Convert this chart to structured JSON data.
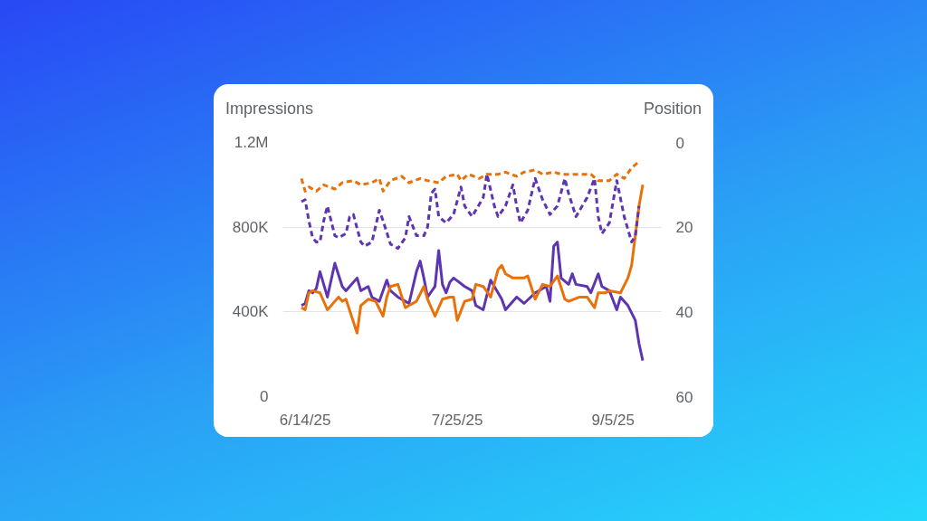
{
  "chart_data": {
    "type": "line",
    "ylabel": "Impressions",
    "y2label": "Position",
    "xlim": [
      "2025-06-08",
      "2025-09-18"
    ],
    "xticks": [
      {
        "value": "2025-06-14",
        "label": "6/14/25"
      },
      {
        "value": "2025-07-25",
        "label": "7/25/25"
      },
      {
        "value": "2025-09-05",
        "label": "9/5/25"
      }
    ],
    "ylim": [
      0,
      1200000
    ],
    "yticks": [
      {
        "value": 0,
        "label": "0"
      },
      {
        "value": 400000,
        "label": "400K"
      },
      {
        "value": 800000,
        "label": "800K"
      },
      {
        "value": 1200000,
        "label": "1.2M"
      }
    ],
    "y2lim": [
      60,
      0
    ],
    "y2ticks": [
      0,
      20,
      40,
      60
    ],
    "grid": "y",
    "legend": false,
    "series": [
      {
        "color": "#5e35b1",
        "line_style": "solid",
        "x": [
          "2025-06-13",
          "2025-06-14",
          "2025-06-15",
          "2025-06-16",
          "2025-06-17",
          "2025-06-18",
          "2025-06-20",
          "2025-06-22",
          "2025-06-24",
          "2025-06-25",
          "2025-06-26",
          "2025-06-28",
          "2025-06-29",
          "2025-07-01",
          "2025-07-02",
          "2025-07-04",
          "2025-07-06",
          "2025-07-07",
          "2025-07-09",
          "2025-07-11",
          "2025-07-12",
          "2025-07-14",
          "2025-07-15",
          "2025-07-16",
          "2025-07-17",
          "2025-07-19",
          "2025-07-20",
          "2025-07-21",
          "2025-07-22",
          "2025-07-23",
          "2025-07-24",
          "2025-07-27",
          "2025-07-29",
          "2025-07-30",
          "2025-08-01",
          "2025-08-03",
          "2025-08-06",
          "2025-08-07",
          "2025-08-10",
          "2025-08-12",
          "2025-08-15",
          "2025-08-18",
          "2025-08-19",
          "2025-08-20",
          "2025-08-21",
          "2025-08-22",
          "2025-08-24",
          "2025-08-25",
          "2025-08-26",
          "2025-08-29",
          "2025-08-30",
          "2025-09-01",
          "2025-09-02",
          "2025-09-04",
          "2025-09-06",
          "2025-09-07",
          "2025-09-09",
          "2025-09-11",
          "2025-09-12",
          "2025-09-13"
        ],
        "values": [
          430000,
          440000,
          500000,
          490000,
          510000,
          590000,
          470000,
          630000,
          520000,
          500000,
          520000,
          560000,
          500000,
          520000,
          470000,
          450000,
          550000,
          500000,
          470000,
          450000,
          440000,
          590000,
          640000,
          560000,
          470000,
          520000,
          690000,
          530000,
          490000,
          540000,
          560000,
          520000,
          500000,
          430000,
          410000,
          550000,
          460000,
          410000,
          470000,
          440000,
          490000,
          520000,
          450000,
          710000,
          730000,
          560000,
          530000,
          580000,
          530000,
          520000,
          490000,
          580000,
          520000,
          500000,
          410000,
          470000,
          430000,
          360000,
          250000,
          170000
        ]
      },
      {
        "color": "#e8710a",
        "line_style": "solid",
        "axis": "y2",
        "x": [
          "2025-06-13",
          "2025-06-14",
          "2025-06-15",
          "2025-06-16",
          "2025-06-18",
          "2025-06-20",
          "2025-06-22",
          "2025-06-23",
          "2025-06-24",
          "2025-06-25",
          "2025-06-28",
          "2025-06-29",
          "2025-07-01",
          "2025-07-03",
          "2025-07-05",
          "2025-07-06",
          "2025-07-07",
          "2025-07-09",
          "2025-07-11",
          "2025-07-12",
          "2025-07-14",
          "2025-07-16",
          "2025-07-17",
          "2025-07-19",
          "2025-07-21",
          "2025-07-23",
          "2025-07-24",
          "2025-07-25",
          "2025-07-27",
          "2025-07-29",
          "2025-07-30",
          "2025-08-01",
          "2025-08-03",
          "2025-08-05",
          "2025-08-06",
          "2025-08-07",
          "2025-08-09",
          "2025-08-12",
          "2025-08-13",
          "2025-08-15",
          "2025-08-17",
          "2025-08-19",
          "2025-08-21",
          "2025-08-23",
          "2025-08-24",
          "2025-08-27",
          "2025-08-29",
          "2025-08-31",
          "2025-09-01",
          "2025-09-03",
          "2025-09-04",
          "2025-09-07",
          "2025-09-09",
          "2025-09-10",
          "2025-09-11",
          "2025-09-12",
          "2025-09-13"
        ],
        "values": [
          39,
          39.5,
          35.5,
          35,
          35.5,
          39.5,
          37.5,
          36.5,
          37.5,
          37,
          45,
          38.5,
          37,
          37.5,
          41,
          36.5,
          34,
          33.5,
          39,
          38.5,
          37.5,
          34,
          37,
          41,
          37,
          36.5,
          36.5,
          42,
          37.5,
          37,
          33.5,
          34,
          36.5,
          30,
          29,
          31,
          32,
          32,
          31.5,
          37,
          33.5,
          34,
          31.5,
          37,
          37.5,
          36.5,
          36.5,
          39,
          35.5,
          35.5,
          35,
          35.5,
          32,
          29,
          22,
          15,
          10
        ]
      },
      {
        "color": "#e8710a",
        "line_style": "dashed",
        "axis": "y2",
        "x": [
          "2025-06-13",
          "2025-06-14",
          "2025-06-15",
          "2025-06-17",
          "2025-06-19",
          "2025-06-22",
          "2025-06-24",
          "2025-06-27",
          "2025-06-29",
          "2025-07-02",
          "2025-07-04",
          "2025-07-05",
          "2025-07-07",
          "2025-07-10",
          "2025-07-12",
          "2025-07-15",
          "2025-07-17",
          "2025-07-20",
          "2025-07-22",
          "2025-07-25",
          "2025-07-26",
          "2025-07-28",
          "2025-07-31",
          "2025-08-02",
          "2025-08-05",
          "2025-08-07",
          "2025-08-10",
          "2025-08-12",
          "2025-08-15",
          "2025-08-17",
          "2025-08-20",
          "2025-08-22",
          "2025-08-24",
          "2025-08-27",
          "2025-08-30",
          "2025-09-01",
          "2025-09-04",
          "2025-09-06",
          "2025-09-08",
          "2025-09-10",
          "2025-09-12"
        ],
        "values": [
          8.5,
          11.5,
          10.5,
          11.5,
          10,
          11,
          9.5,
          9,
          10,
          9.5,
          8.5,
          11.5,
          9,
          8,
          9.5,
          8.5,
          9,
          9.5,
          8,
          7.5,
          9,
          7.5,
          8.5,
          7.5,
          7.5,
          7,
          8,
          7,
          6.5,
          7.5,
          7,
          7.5,
          7.5,
          7.5,
          7.5,
          9,
          9,
          7.5,
          8.5,
          6,
          4.5
        ]
      },
      {
        "color": "#5e35b1",
        "line_style": "dashed",
        "x": [
          "2025-06-13",
          "2025-06-14",
          "2025-06-15",
          "2025-06-16",
          "2025-06-17",
          "2025-06-18",
          "2025-06-19",
          "2025-06-20",
          "2025-06-22",
          "2025-06-23",
          "2025-06-25",
          "2025-06-26",
          "2025-06-27",
          "2025-06-29",
          "2025-06-30",
          "2025-07-02",
          "2025-07-04",
          "2025-07-05",
          "2025-07-07",
          "2025-07-09",
          "2025-07-11",
          "2025-07-12",
          "2025-07-14",
          "2025-07-16",
          "2025-07-17",
          "2025-07-18",
          "2025-07-19",
          "2025-07-20",
          "2025-07-22",
          "2025-07-24",
          "2025-07-26",
          "2025-07-27",
          "2025-07-29",
          "2025-08-01",
          "2025-08-02",
          "2025-08-04",
          "2025-08-05",
          "2025-08-07",
          "2025-08-09",
          "2025-08-10",
          "2025-08-11",
          "2025-08-13",
          "2025-08-15",
          "2025-08-17",
          "2025-08-19",
          "2025-08-21",
          "2025-08-23",
          "2025-08-24",
          "2025-08-26",
          "2025-08-29",
          "2025-08-31",
          "2025-09-01",
          "2025-09-02",
          "2025-09-04",
          "2025-09-06",
          "2025-09-08",
          "2025-09-10",
          "2025-09-11",
          "2025-09-12"
        ],
        "values": [
          920000,
          930000,
          830000,
          750000,
          730000,
          730000,
          830000,
          900000,
          760000,
          750000,
          770000,
          850000,
          860000,
          730000,
          710000,
          730000,
          880000,
          830000,
          720000,
          700000,
          750000,
          850000,
          760000,
          760000,
          800000,
          960000,
          980000,
          850000,
          820000,
          860000,
          990000,
          900000,
          850000,
          940000,
          1050000,
          900000,
          850000,
          900000,
          1000000,
          900000,
          820000,
          880000,
          1030000,
          930000,
          860000,
          900000,
          1030000,
          960000,
          850000,
          940000,
          1030000,
          850000,
          770000,
          820000,
          1020000,
          850000,
          730000,
          760000,
          900000
        ]
      }
    ]
  }
}
